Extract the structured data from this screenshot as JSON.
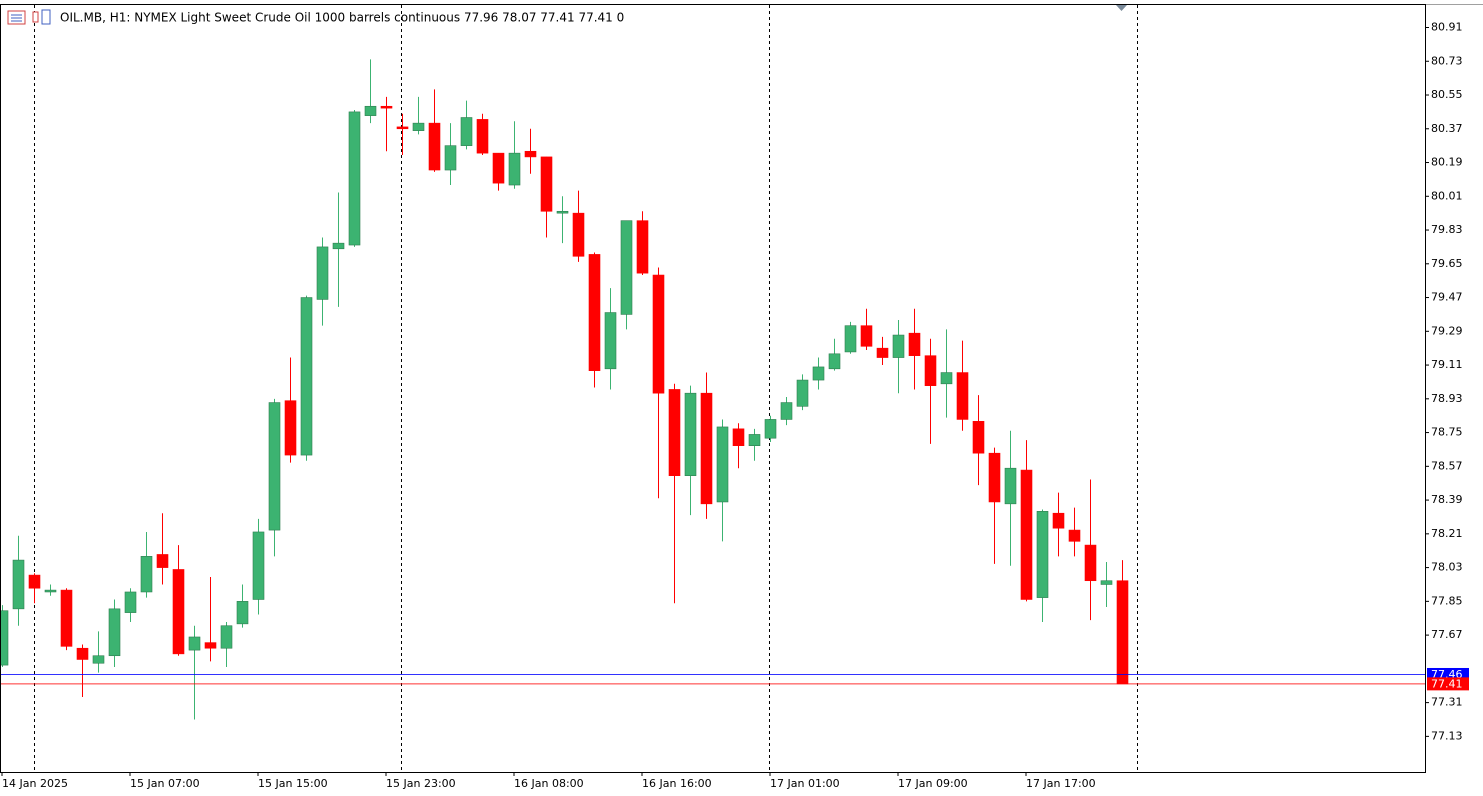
{
  "chart_data": {
    "type": "candlestick",
    "title": "OIL.MB, H1:  NYMEX Light Sweet Crude Oil 1000 barrels continuous  77.96 78.07 77.41 77.41  0",
    "categories": [
      "14 Jan 2025",
      null,
      null,
      null,
      null,
      null,
      null,
      null,
      "15 Jan 07:00",
      null,
      null,
      null,
      null,
      null,
      null,
      null,
      "15 Jan 15:00",
      null,
      null,
      null,
      null,
      null,
      null,
      null,
      "15 Jan 23:00",
      null,
      null,
      null,
      null,
      null,
      null,
      null,
      "16 Jan 08:00",
      null,
      null,
      null,
      null,
      null,
      null,
      null,
      "16 Jan 16:00",
      null,
      null,
      null,
      null,
      null,
      null,
      null,
      "17 Jan 01:00",
      null,
      null,
      null,
      null,
      null,
      null,
      null,
      "17 Jan 09:00",
      null,
      null,
      null,
      null,
      null,
      null,
      null,
      "17 Jan 17:00",
      null,
      null,
      null,
      null,
      null,
      null
    ],
    "open": [
      77.51,
      77.81,
      77.99,
      77.9,
      77.91,
      77.6,
      77.52,
      77.56,
      77.79,
      77.9,
      78.1,
      78.02,
      77.59,
      77.63,
      77.6,
      77.73,
      77.86,
      78.23,
      78.92,
      78.63,
      79.46,
      79.73,
      79.75,
      80.44,
      80.49,
      80.38,
      80.36,
      80.4,
      80.15,
      80.28,
      80.42,
      80.24,
      80.07,
      80.25,
      80.22,
      79.92,
      79.92,
      79.7,
      79.09,
      79.38,
      79.88,
      79.59,
      78.98,
      78.52,
      78.96,
      78.38,
      78.77,
      78.68,
      78.72,
      78.82,
      78.89,
      79.03,
      79.09,
      79.18,
      79.32,
      79.2,
      79.15,
      79.28,
      79.16,
      79.01,
      79.07,
      78.81,
      78.64,
      78.37,
      78.55,
      77.87,
      78.32,
      78.23,
      78.15,
      77.94,
      77.96
    ],
    "high": [
      77.83,
      78.2,
      78.0,
      77.94,
      77.92,
      77.62,
      77.69,
      77.86,
      77.92,
      78.22,
      78.32,
      78.15,
      77.72,
      77.98,
      77.74,
      77.94,
      78.29,
      78.93,
      79.15,
      79.48,
      79.79,
      80.03,
      80.47,
      80.74,
      80.54,
      80.45,
      80.54,
      80.58,
      80.4,
      80.52,
      80.45,
      80.24,
      80.41,
      80.37,
      80.22,
      80.01,
      80.04,
      79.71,
      79.52,
      79.88,
      79.93,
      79.63,
      79.01,
      79.0,
      79.07,
      78.82,
      78.8,
      78.77,
      78.84,
      78.94,
      79.06,
      79.15,
      79.25,
      79.34,
      79.41,
      79.26,
      79.35,
      79.41,
      79.25,
      79.3,
      79.24,
      78.95,
      78.67,
      78.76,
      78.71,
      78.34,
      78.43,
      78.35,
      78.5,
      78.06,
      78.07
    ],
    "low": [
      77.5,
      77.72,
      77.84,
      77.88,
      77.59,
      77.34,
      77.47,
      77.5,
      77.74,
      77.87,
      77.94,
      77.56,
      77.22,
      77.53,
      77.5,
      77.71,
      77.78,
      78.09,
      78.59,
      78.6,
      79.32,
      79.42,
      79.74,
      80.4,
      80.25,
      80.23,
      80.34,
      80.14,
      80.07,
      80.26,
      80.23,
      80.04,
      80.05,
      80.13,
      79.79,
      79.76,
      79.66,
      78.99,
      78.98,
      79.3,
      79.59,
      78.4,
      77.84,
      78.31,
      78.29,
      78.17,
      78.56,
      78.6,
      78.7,
      78.79,
      78.87,
      78.98,
      79.08,
      79.17,
      79.19,
      79.11,
      78.96,
      78.98,
      78.69,
      78.83,
      78.76,
      78.47,
      78.05,
      78.04,
      77.85,
      77.74,
      78.09,
      78.09,
      77.75,
      77.82,
      77.41
    ],
    "close": [
      77.8,
      78.07,
      77.92,
      77.91,
      77.61,
      77.54,
      77.56,
      77.81,
      77.9,
      78.09,
      78.03,
      77.57,
      77.66,
      77.6,
      77.72,
      77.85,
      78.22,
      78.91,
      78.63,
      79.47,
      79.74,
      79.76,
      80.46,
      80.49,
      80.48,
      80.37,
      80.4,
      80.15,
      80.28,
      80.43,
      80.24,
      80.08,
      80.24,
      80.22,
      79.93,
      79.93,
      79.69,
      79.08,
      79.39,
      79.88,
      79.6,
      78.96,
      78.52,
      78.96,
      78.37,
      78.78,
      78.68,
      78.74,
      78.82,
      78.91,
      79.03,
      79.1,
      79.17,
      79.32,
      79.21,
      79.15,
      79.27,
      79.16,
      79.0,
      79.07,
      78.82,
      78.64,
      78.38,
      78.56,
      77.86,
      78.33,
      78.24,
      78.17,
      77.96,
      77.96,
      77.41
    ],
    "up_color": "#3cb371",
    "down_color": "#ff0000",
    "ylim": [
      76.94,
      81.03
    ],
    "yticks": [
      80.91,
      80.73,
      80.55,
      80.37,
      80.19,
      80.01,
      79.83,
      79.65,
      79.47,
      79.29,
      79.11,
      78.93,
      78.75,
      78.57,
      78.39,
      78.21,
      78.03,
      77.85,
      77.67,
      77.31,
      77.13
    ],
    "price_lines": [
      {
        "value": 77.46,
        "color": "#0000ff"
      },
      {
        "value": 77.41,
        "color": "#ff0000"
      }
    ]
  }
}
